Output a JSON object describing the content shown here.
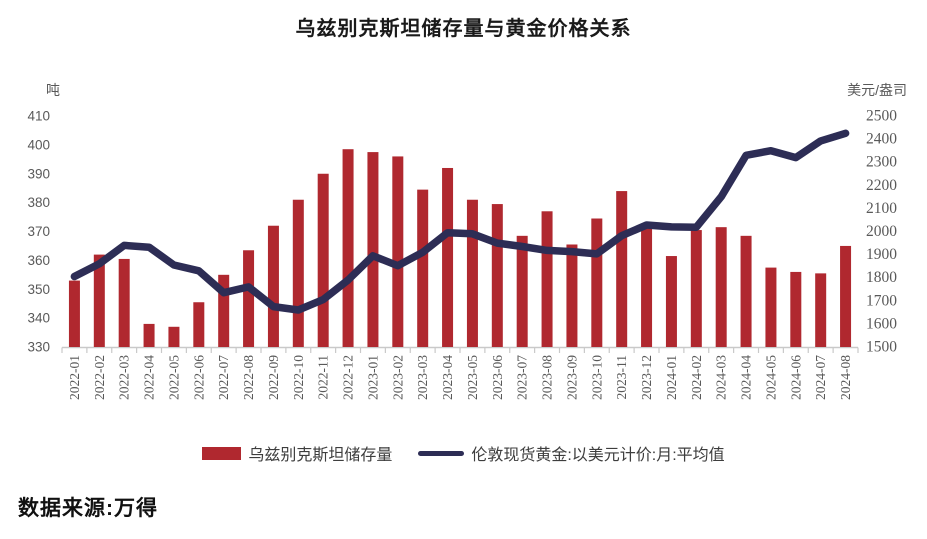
{
  "title": "乌兹别克斯坦储存量与黄金价格关系",
  "axes": {
    "left": {
      "unit": "吨",
      "ticks": [
        410,
        400,
        390,
        380,
        370,
        360,
        350,
        340,
        330
      ]
    },
    "right": {
      "unit": "美元/盎司",
      "ticks": [
        2500,
        2400,
        2300,
        2200,
        2100,
        2000,
        1900,
        1800,
        1700,
        1600,
        1500
      ]
    }
  },
  "legend": {
    "items": [
      {
        "label": "乌兹别克斯坦储存量",
        "type": "bar",
        "color": "#B0282F"
      },
      {
        "label": "伦敦现货黄金:以美元计价:月:平均值",
        "type": "line",
        "color": "#2D2D55"
      }
    ]
  },
  "footer": {
    "source": "数据来源:万得"
  },
  "colors": {
    "bar": "#B0282F",
    "line": "#2D2D55",
    "axis_text": "#595959",
    "axis_line": "#C9C9C9",
    "title_text": "#1A1A1A"
  },
  "chart_data": {
    "type": "bar",
    "subtype": "combo-bar-line-dual-axis",
    "title": "乌兹别克斯坦储存量与黄金价格关系",
    "categories": [
      "2022-01",
      "2022-02",
      "2022-03",
      "2022-04",
      "2022-05",
      "2022-06",
      "2022-07",
      "2022-08",
      "2022-09",
      "2022-10",
      "2022-11",
      "2022-12",
      "2023-01",
      "2023-02",
      "2023-03",
      "2023-04",
      "2023-05",
      "2023-06",
      "2023-07",
      "2023-08",
      "2023-09",
      "2023-10",
      "2023-11",
      "2023-12",
      "2024-01",
      "2024-02",
      "2024-03",
      "2024-04",
      "2024-05",
      "2024-06",
      "2024-07",
      "2024-08"
    ],
    "series": [
      {
        "name": "乌兹别克斯坦储存量",
        "type": "bar",
        "axis": "left",
        "unit": "吨",
        "color": "#B0282F",
        "values": [
          353,
          362,
          360.5,
          338,
          337,
          345.5,
          355,
          363.5,
          372,
          381,
          390,
          398.5,
          397.5,
          396,
          384.5,
          392,
          381,
          379.5,
          368.5,
          377,
          365.5,
          374.5,
          384,
          371.5,
          361.5,
          370.5,
          371.5,
          368.5,
          357.5,
          356,
          355.5,
          365
        ]
      },
      {
        "name": "伦敦现货黄金:以美元计价:月:平均值",
        "type": "line",
        "axis": "right",
        "unit": "美元/盎司",
        "color": "#2D2D55",
        "values": [
          1805,
          1860,
          1940,
          1932,
          1855,
          1830,
          1735,
          1760,
          1675,
          1660,
          1705,
          1790,
          1895,
          1852,
          1910,
          1995,
          1990,
          1950,
          1935,
          1918,
          1913,
          1903,
          1982,
          2028,
          2020,
          2018,
          2150,
          2330,
          2350,
          2320,
          2392,
          2425
        ]
      }
    ],
    "left_ylim": [
      330,
      410
    ],
    "right_ylim": [
      1500,
      2500
    ],
    "grid": false,
    "legend_position": "bottom",
    "x_tick_rotation": 90
  }
}
